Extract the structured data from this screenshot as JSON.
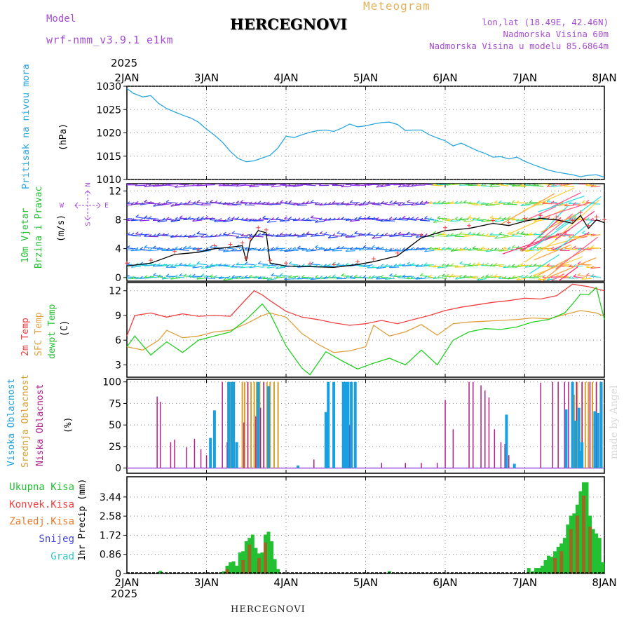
{
  "header": {
    "model_label": "Model",
    "model_name": "wrf-nmm_v3.9.1 e1km",
    "station": "HERCEGNOVI",
    "meteogram": "Meteogram",
    "lonlat": "lon,lat (18.49E, 42.46N)",
    "elevation": "Nadmorska Visina 60m",
    "model_elevation": "Nadmorska Visina u modelu 85.6864m",
    "year_top": "2025",
    "year_bottom": "2025",
    "footer_station": "HERCEGNOVI",
    "made_by": "made by Angel"
  },
  "colors": {
    "pressure": "#2aa7e0",
    "wind_label": "#22c032",
    "temp2m": "#ef4040",
    "sfc": "#e0a040",
    "dewpt": "#22d022",
    "high_cloud": "#1a9fe0",
    "mid_cloud": "#d8a030",
    "low_cloud": "#b0208a",
    "total_precip": "#22c032",
    "conv_precip": "#ef4040",
    "frozen": "#f07a28",
    "snow": "#4545e0",
    "graupel": "#30c8c8",
    "purple": "#a64ed1"
  },
  "x_axis_labels": [
    "2JAN",
    "3JAN",
    "4JAN",
    "5JAN",
    "6JAN",
    "7JAN",
    "8JAN"
  ],
  "panels": {
    "pressure": {
      "label1": "Pritisak na nivou mora",
      "unit": "(hPa)"
    },
    "wind": {
      "label1": "10m Vjetar",
      "label2": "Brzina i Pravac",
      "unit": "(m/s)",
      "compass_n": "N",
      "compass_s": "S",
      "compass_w": "W",
      "compass_e": "E"
    },
    "temp": {
      "label1": "2m Temp",
      "label2": "SFC Temp",
      "label3": "dewpt Temp",
      "unit": "(C)"
    },
    "cloud": {
      "label1": "Visoka Oblacnost",
      "label2": "Srednja Oblacnost",
      "label3": "Niska Oblacnost",
      "unit": "(%)"
    },
    "precip": {
      "unit": "1hr Precip (mm)",
      "legend": [
        "Ukupna Kisa",
        "Konvek.Kisa",
        "Zaledj.Kisa",
        "Snijeg",
        "Grad"
      ]
    }
  },
  "chart_data": [
    {
      "type": "line",
      "name": "pressure",
      "ylim": [
        1010,
        1030
      ],
      "yticks": [
        "1010",
        "1015",
        "1020",
        "1025",
        "1030"
      ],
      "x_days": [
        0,
        0.08,
        0.2,
        0.3,
        0.4,
        0.5,
        0.6,
        0.7,
        0.8,
        0.9,
        1.0,
        1.1,
        1.2,
        1.3,
        1.4,
        1.5,
        1.6,
        1.7,
        1.8,
        1.9,
        2.0,
        2.1,
        2.2,
        2.3,
        2.4,
        2.5,
        2.6,
        2.7,
        2.8,
        2.9,
        3.0,
        3.1,
        3.2,
        3.3,
        3.4,
        3.5,
        3.6,
        3.7,
        3.8,
        3.9,
        4.0,
        4.1,
        4.2,
        4.3,
        4.4,
        4.5,
        4.6,
        4.7,
        4.8,
        4.9,
        5.0,
        5.1,
        5.2,
        5.3,
        5.4,
        5.5,
        5.6,
        5.7,
        5.8,
        5.9,
        6.0
      ],
      "values": [
        1029.5,
        1028.5,
        1027.7,
        1028.0,
        1026.3,
        1025.2,
        1024.5,
        1023.8,
        1023.2,
        1022.3,
        1020.8,
        1019.5,
        1018.0,
        1016.0,
        1014.5,
        1013.8,
        1014.0,
        1014.6,
        1015.2,
        1016.8,
        1019.3,
        1019.0,
        1019.6,
        1020.1,
        1020.5,
        1020.6,
        1020.3,
        1021.0,
        1021.9,
        1021.3,
        1021.5,
        1021.9,
        1022.2,
        1022.3,
        1021.8,
        1020.5,
        1020.6,
        1020.6,
        1019.6,
        1018.9,
        1018.3,
        1017.2,
        1017.8,
        1017.0,
        1016.2,
        1015.6,
        1014.8,
        1014.9,
        1014.4,
        1014.8,
        1013.9,
        1013.2,
        1012.6,
        1012.0,
        1011.6,
        1011.3,
        1011.0,
        1010.6,
        1010.9,
        1011.0,
        1010.5
      ]
    },
    {
      "type": "line",
      "name": "wind",
      "ylim": [
        -0.5,
        13
      ],
      "yticks": [
        "0",
        "4",
        "8",
        "12"
      ],
      "series": [
        {
          "name": "wind-speed",
          "x_days": [
            0,
            0.3,
            0.6,
            0.9,
            1.1,
            1.3,
            1.45,
            1.5,
            1.55,
            1.65,
            1.75,
            1.8,
            2.0,
            2.3,
            2.6,
            2.9,
            3.1,
            3.4,
            3.7,
            4.0,
            4.3,
            4.6,
            4.8,
            5.0,
            5.2,
            5.4,
            5.6,
            5.7,
            5.8,
            5.9,
            6.0
          ],
          "values": [
            1.6,
            2.0,
            3.2,
            3.5,
            4.0,
            4.2,
            4.4,
            2.3,
            5.0,
            6.5,
            6.2,
            2.0,
            1.6,
            1.5,
            1.4,
            1.8,
            2.2,
            3.0,
            5.5,
            6.5,
            6.8,
            7.5,
            7.2,
            7.8,
            8.2,
            8.0,
            7.5,
            8.6,
            6.8,
            8.0,
            7.6
          ]
        }
      ]
    },
    {
      "type": "line",
      "name": "temperature",
      "ylim": [
        1.5,
        13
      ],
      "yticks": [
        "3",
        "6",
        "9",
        "12"
      ],
      "series": [
        {
          "name": "2m Temp",
          "x_days": [
            0,
            0.1,
            0.3,
            0.5,
            0.7,
            0.9,
            1.1,
            1.3,
            1.5,
            1.6,
            1.7,
            1.8,
            2.0,
            2.2,
            2.4,
            2.6,
            2.8,
            3.0,
            3.2,
            3.4,
            3.6,
            3.8,
            4.0,
            4.2,
            4.4,
            4.6,
            4.8,
            5.0,
            5.2,
            5.4,
            5.6,
            5.8,
            6.0
          ],
          "values": [
            6.5,
            9.0,
            9.3,
            8.8,
            9.2,
            8.9,
            9.0,
            8.9,
            11.0,
            12.0,
            11.5,
            10.8,
            9.5,
            8.8,
            8.5,
            8.1,
            7.8,
            8.0,
            8.4,
            8.0,
            8.5,
            9.0,
            9.6,
            10.0,
            10.3,
            10.6,
            10.8,
            11.1,
            11.0,
            11.4,
            12.8,
            12.5,
            12.0
          ]
        },
        {
          "name": "SFC Temp",
          "x_days": [
            0,
            0.2,
            0.4,
            0.5,
            0.7,
            0.9,
            1.1,
            1.3,
            1.5,
            1.7,
            1.8,
            2.0,
            2.2,
            2.4,
            2.6,
            2.8,
            3.0,
            3.1,
            3.3,
            3.5,
            3.7,
            3.9,
            4.1,
            4.3,
            4.5,
            4.7,
            4.9,
            5.1,
            5.3,
            5.5,
            5.7,
            5.9,
            6.0
          ],
          "values": [
            5.2,
            4.8,
            6.0,
            7.2,
            6.3,
            6.5,
            7.0,
            7.2,
            8.0,
            9.0,
            9.3,
            8.8,
            6.8,
            5.5,
            4.5,
            4.7,
            5.2,
            7.8,
            6.5,
            7.0,
            7.9,
            6.6,
            8.0,
            8.2,
            8.3,
            8.4,
            8.5,
            8.7,
            8.6,
            9.1,
            9.6,
            9.3,
            8.9
          ]
        },
        {
          "name": "dewpt Temp",
          "x_days": [
            0,
            0.1,
            0.3,
            0.5,
            0.7,
            0.9,
            1.1,
            1.3,
            1.5,
            1.7,
            1.8,
            2.0,
            2.2,
            2.3,
            2.5,
            2.7,
            2.9,
            3.1,
            3.3,
            3.5,
            3.7,
            3.9,
            4.1,
            4.3,
            4.5,
            4.7,
            4.9,
            5.1,
            5.3,
            5.5,
            5.6,
            5.7,
            5.8,
            5.9,
            6.0
          ],
          "values": [
            5.2,
            6.5,
            4.2,
            5.8,
            4.5,
            6.0,
            6.5,
            7.0,
            8.5,
            10.4,
            9.2,
            5.3,
            2.6,
            1.8,
            4.6,
            3.5,
            2.5,
            3.2,
            3.8,
            3.0,
            4.8,
            3.0,
            6.0,
            7.0,
            7.4,
            7.3,
            7.6,
            8.2,
            8.5,
            9.3,
            10.4,
            11.6,
            11.5,
            12.4,
            8.5
          ]
        }
      ]
    },
    {
      "type": "bar",
      "name": "cloud",
      "ylim": [
        0,
        100
      ],
      "yticks": [
        "0",
        "25",
        "50",
        "75",
        "100"
      ],
      "series": [
        {
          "name": "high",
          "x_days": [
            1.05,
            1.1,
            1.28,
            1.32,
            1.34,
            1.38,
            1.65,
            1.78,
            2.15,
            2.5,
            2.53,
            2.6,
            2.72,
            2.75,
            2.78,
            2.82,
            2.87,
            4.77,
            4.87,
            4.93,
            5.52,
            5.6,
            5.64,
            5.68,
            5.7,
            5.72,
            5.88,
            5.92,
            5.96
          ],
          "values": [
            35,
            67,
            100,
            100,
            100,
            30,
            100,
            95,
            3,
            65,
            100,
            100,
            100,
            100,
            100,
            100,
            100,
            62,
            5,
            0,
            68,
            100,
            55,
            70,
            20,
            30,
            66,
            64,
            100
          ]
        },
        {
          "name": "mid",
          "x_days": [
            1.27,
            1.3,
            1.35,
            1.45,
            1.48,
            1.52,
            1.56,
            1.6,
            1.63,
            1.67,
            1.72,
            1.76,
            1.8,
            1.85,
            1.9,
            5.52,
            5.62,
            5.66,
            5.72,
            5.76,
            5.8,
            5.85,
            5.9,
            5.95
          ],
          "values": [
            100,
            100,
            100,
            100,
            100,
            100,
            100,
            100,
            100,
            100,
            100,
            100,
            100,
            100,
            100,
            40,
            85,
            100,
            100,
            100,
            100,
            100,
            100,
            100
          ]
        },
        {
          "name": "low",
          "x_days": [
            0.38,
            0.42,
            0.55,
            0.6,
            0.75,
            0.85,
            0.93,
            1.0,
            1.2,
            1.26,
            1.47,
            1.52,
            1.62,
            1.68,
            1.72,
            2.35,
            2.8,
            3.2,
            3.5,
            3.7,
            3.9,
            4.0,
            4.1,
            4.3,
            4.35,
            4.45,
            4.5,
            4.55,
            4.62,
            4.7,
            4.75,
            4.8,
            5.2,
            5.35,
            5.42,
            5.5,
            5.55,
            5.6,
            5.65,
            5.72,
            5.82,
            5.9,
            5.95
          ],
          "values": [
            83,
            77,
            30,
            33,
            24,
            34,
            22,
            15,
            100,
            30,
            53,
            100,
            60,
            70,
            100,
            10,
            50,
            6,
            6,
            6,
            6,
            79,
            45,
            100,
            100,
            96,
            90,
            82,
            45,
            30,
            28,
            15,
            99,
            100,
            100,
            100,
            100,
            100,
            100,
            100,
            100,
            100,
            100
          ]
        }
      ]
    },
    {
      "type": "bar",
      "name": "precip",
      "ylim": [
        0,
        4.3
      ],
      "yticks": [
        "0",
        "0.86",
        "1.72",
        "2.58",
        "3.44"
      ],
      "series": [
        {
          "name": "Ukupna Kisa",
          "x_days": [
            0.42,
            1.18,
            1.22,
            1.26,
            1.3,
            1.34,
            1.38,
            1.42,
            1.46,
            1.5,
            1.54,
            1.58,
            1.62,
            1.66,
            1.7,
            1.74,
            1.78,
            1.82,
            1.86,
            1.9,
            3.3,
            5.05,
            5.1,
            5.14,
            5.18,
            5.22,
            5.26,
            5.3,
            5.34,
            5.38,
            5.42,
            5.46,
            5.5,
            5.54,
            5.58,
            5.62,
            5.66,
            5.7,
            5.74,
            5.78,
            5.82,
            5.86,
            5.9,
            5.94,
            5.98
          ],
          "values": [
            0.12,
            0.05,
            0.1,
            0.35,
            0.5,
            0.55,
            0.35,
            0.95,
            1.0,
            1.45,
            1.6,
            1.75,
            1.15,
            0.9,
            0.95,
            1.75,
            1.88,
            1.45,
            0.65,
            0.2,
            0.1,
            0.25,
            0.1,
            0.25,
            0.25,
            0.35,
            0.6,
            0.8,
            0.75,
            1.0,
            1.2,
            1.35,
            1.6,
            2.2,
            2.6,
            2.7,
            3.1,
            3.7,
            4.1,
            4.1,
            2.6,
            2.0,
            1.8,
            1.6,
            0.5
          ]
        },
        {
          "name": "Konvek.Kisa",
          "x_days": [
            1.26,
            1.46,
            1.54,
            1.66,
            1.74,
            5.38,
            5.46,
            5.58,
            5.66,
            5.74,
            5.82
          ],
          "values": [
            0.2,
            0.6,
            1.3,
            0.7,
            1.4,
            0.7,
            1.0,
            2.0,
            2.6,
            3.5,
            2.1
          ]
        }
      ]
    }
  ]
}
